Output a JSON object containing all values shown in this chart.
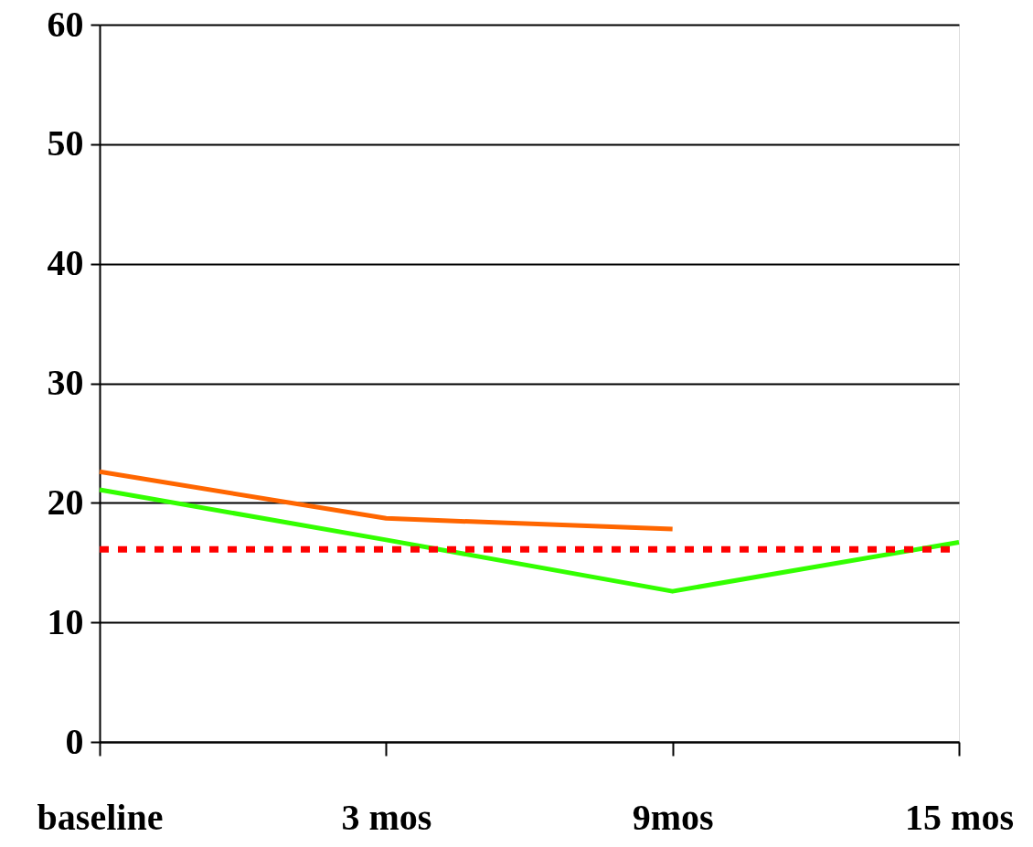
{
  "chart_data": {
    "type": "line",
    "categories": [
      "baseline",
      "3 mos",
      "9mos",
      "15 mos"
    ],
    "series": [
      {
        "color": "#ff6600",
        "values": [
          22.6,
          18.7,
          17.8,
          null
        ]
      },
      {
        "color": "#33ff00",
        "values": [
          21.1,
          16.9,
          12.6,
          16.7
        ]
      }
    ],
    "ylim": [
      0,
      60
    ],
    "yticks": [
      0,
      10,
      20,
      30,
      40,
      50,
      60
    ],
    "grid": "y",
    "line_style": "solid",
    "marker": "none",
    "ref_lines": [
      {
        "axis": "y",
        "value": 16.1,
        "color": "#ff0000",
        "line_style": "dashed"
      }
    ]
  }
}
